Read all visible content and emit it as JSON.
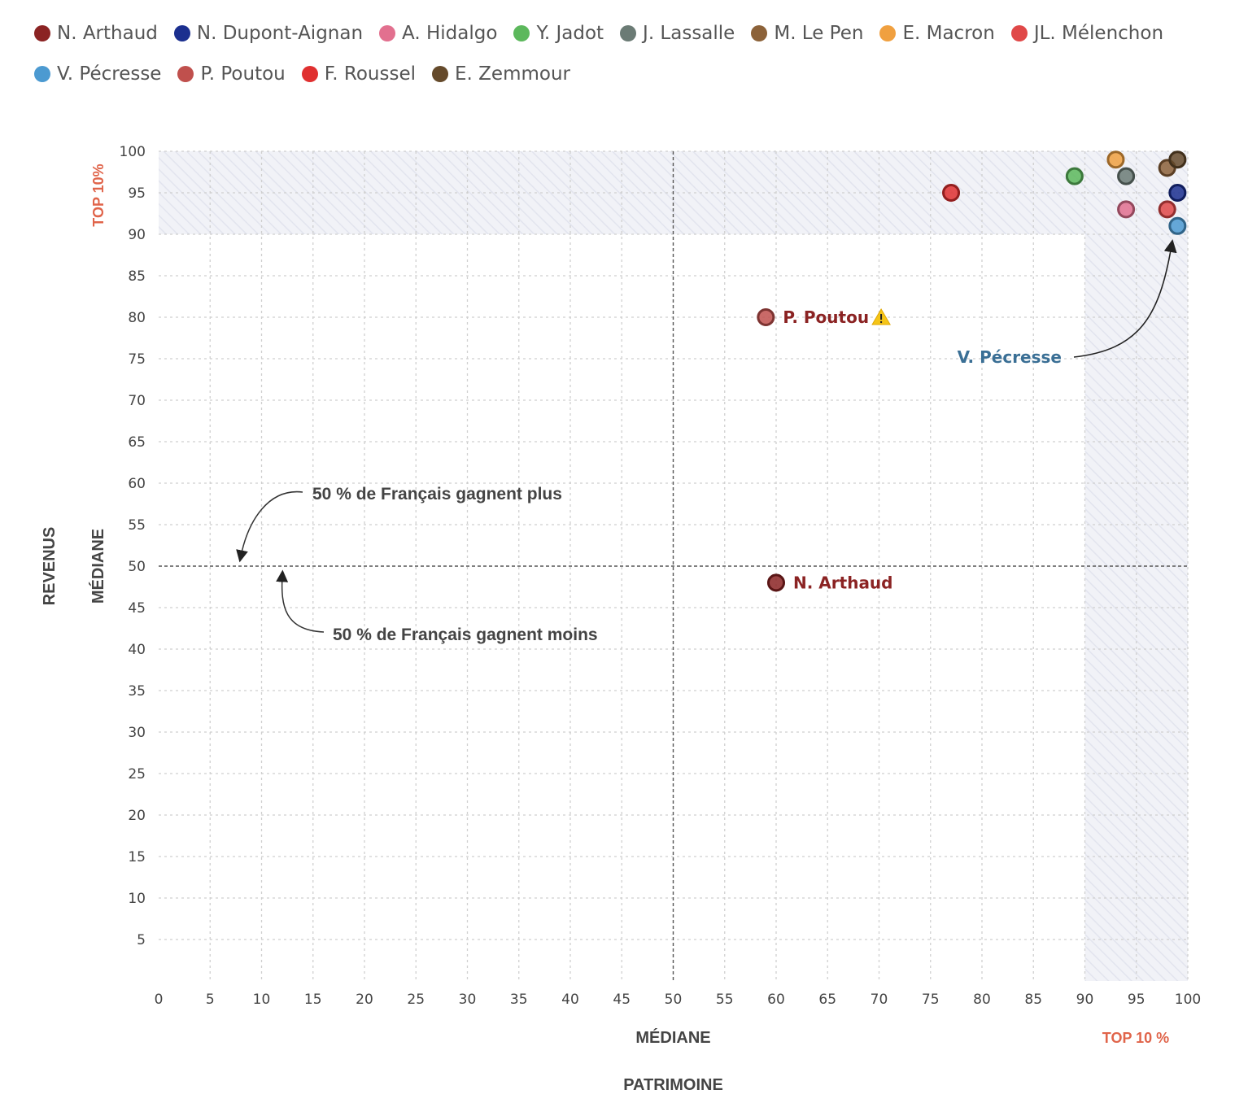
{
  "chart_data": {
    "type": "scatter",
    "xlim": [
      0,
      100
    ],
    "ylim": [
      0,
      100
    ],
    "xticks": [
      0,
      5,
      10,
      15,
      20,
      25,
      30,
      35,
      40,
      45,
      50,
      55,
      60,
      65,
      70,
      75,
      80,
      85,
      90,
      95,
      100
    ],
    "yticks": [
      5,
      10,
      15,
      20,
      25,
      30,
      35,
      40,
      45,
      50,
      55,
      60,
      65,
      70,
      75,
      80,
      85,
      90,
      95,
      100
    ],
    "grid": true,
    "legend_position": "top",
    "xlabel": "PATRIMOINE",
    "ylabel": "REVENUS",
    "x_median_label": "MÉDIANE",
    "y_median_label": "MÉDIANE",
    "x_top_label": "TOP 10 %",
    "y_top_label": "TOP 10%",
    "median_x": 50,
    "median_y": 50,
    "top_threshold": 90,
    "series": [
      {
        "name": "N. Arthaud",
        "color": "#8b2323",
        "x": 60,
        "y": 48
      },
      {
        "name": "N. Dupont-Aignan",
        "color": "#1b2f8f",
        "x": 99,
        "y": 95
      },
      {
        "name": "A. Hidalgo",
        "color": "#e2708f",
        "x": 94,
        "y": 93
      },
      {
        "name": "Y. Jadot",
        "color": "#5cb85c",
        "x": 89,
        "y": 97
      },
      {
        "name": "J. Lassalle",
        "color": "#6b7b75",
        "x": 94,
        "y": 97
      },
      {
        "name": "M. Le Pen",
        "color": "#8c6239",
        "x": 98,
        "y": 98
      },
      {
        "name": "E. Macron",
        "color": "#f0a040",
        "x": 93,
        "y": 99
      },
      {
        "name": "JL. Mélenchon",
        "color": "#e04848",
        "x": 98,
        "y": 93
      },
      {
        "name": "V. Pécresse",
        "color": "#4c9ad1",
        "x": 99,
        "y": 91
      },
      {
        "name": "P. Poutou",
        "color": "#c0504d",
        "x": 59,
        "y": 80
      },
      {
        "name": "F. Roussel",
        "color": "#e03030",
        "x": 77,
        "y": 95
      },
      {
        "name": "E. Zemmour",
        "color": "#654a2b",
        "x": 99,
        "y": 99
      }
    ],
    "point_labels": [
      {
        "text": "P. Poutou",
        "candidate": "P. Poutou",
        "color": "#8b2323",
        "warning": true
      },
      {
        "text": "N. Arthaud",
        "candidate": "N. Arthaud",
        "color": "#8b2323",
        "warning": false
      },
      {
        "text": "V. Pécresse",
        "candidate": "V. Pécresse",
        "color": "#3a6f95",
        "warning": false
      }
    ],
    "annotations": [
      {
        "text": "50 % de Français gagnent plus"
      },
      {
        "text": "50 % de Français gagnent moins"
      }
    ]
  }
}
